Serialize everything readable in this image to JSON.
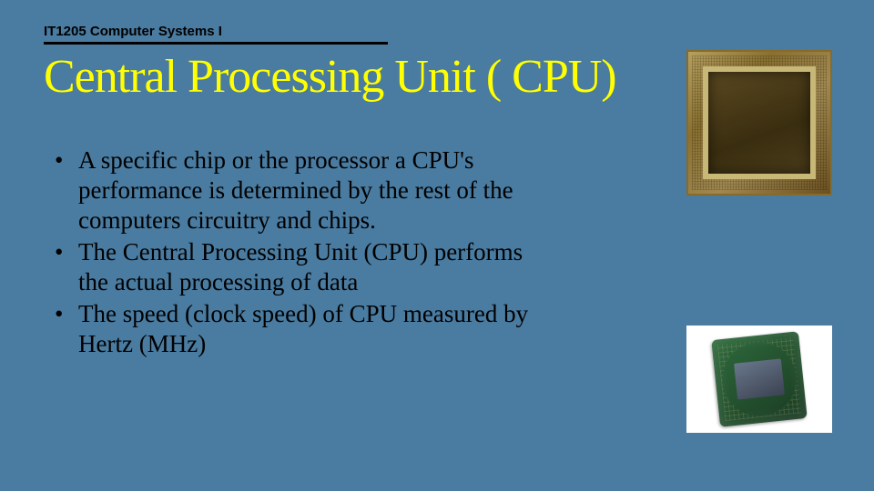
{
  "header": {
    "course_label": "IT1205 Computer Systems I"
  },
  "title": "Central Processing Unit ( CPU)",
  "bullets": [
    "A specific chip or the processor\na CPU's performance is determined by the rest of the computers circuitry and chips.",
    "The Central Processing Unit (CPU) performs the actual processing of data",
    "The speed (clock speed) of CPU measured by Hertz (MHz)"
  ],
  "colors": {
    "background": "#4a7ba0",
    "title": "#ffff00",
    "text": "#000000",
    "rule": "#000000"
  },
  "images": {
    "top": {
      "name": "cpu-die-photo",
      "dominant_colors": [
        "#b5a060",
        "#6a5020",
        "#c8b878"
      ]
    },
    "bottom": {
      "name": "pentium-chip-photo",
      "dominant_colors": [
        "#2e6a3c",
        "#69768a",
        "#ffffff"
      ]
    }
  }
}
